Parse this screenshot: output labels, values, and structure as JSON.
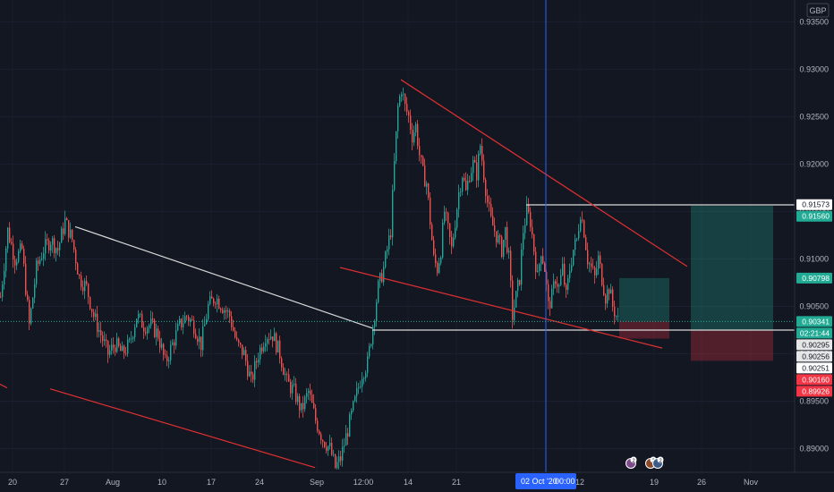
{
  "window": {
    "currency_label": "GBP"
  },
  "crosshair": {
    "date_label": "02 Oct '20",
    "time_label": "00:00"
  },
  "markers": [
    {
      "count": "2"
    },
    {
      "count": "2"
    },
    {
      "count": "2"
    }
  ],
  "chart_data": {
    "type": "candlestick",
    "symbol_currency": "GBP",
    "x_ticks": [
      "20",
      "27",
      "Aug",
      "10",
      "17",
      "24",
      "Sep",
      "12:00",
      "14",
      "21",
      "Oct",
      "12",
      "19",
      "26",
      "Nov"
    ],
    "y_ticks": [
      "0.93500",
      "0.93000",
      "0.92500",
      "0.92000",
      "0.91500",
      "0.91000",
      "0.90500",
      "0.90000",
      "0.89500",
      "0.89000"
    ],
    "ylim": [
      0.8875,
      0.9373
    ],
    "price_labels": [
      {
        "value": "0.91573",
        "bg": "#ffffff",
        "fg": "#131722"
      },
      {
        "value": "0.91560",
        "bg": "#22ab94",
        "fg": "#ffffff"
      },
      {
        "value": "0.90798",
        "bg": "#22ab94",
        "fg": "#ffffff"
      },
      {
        "value": "0.90341",
        "bg": "#22ab94",
        "fg": "#ffffff"
      },
      {
        "value": "02:21:44",
        "bg": "#22ab94",
        "fg": "#ffffff"
      },
      {
        "value": "0.90295",
        "bg": "#e6e6e6",
        "fg": "#131722"
      },
      {
        "value": "0.90256",
        "bg": "#e6e6e6",
        "fg": "#131722"
      },
      {
        "value": "0.90251",
        "bg": "#ffffff",
        "fg": "#131722"
      },
      {
        "value": "0.90160",
        "bg": "#f23645",
        "fg": "#ffffff"
      },
      {
        "value": "0.89926",
        "bg": "#f23645",
        "fg": "#ffffff"
      }
    ],
    "close_path": [
      [
        0,
        0.906
      ],
      [
        8,
        0.913
      ],
      [
        16,
        0.91
      ],
      [
        24,
        0.911
      ],
      [
        32,
        0.903
      ],
      [
        40,
        0.909
      ],
      [
        48,
        0.911
      ],
      [
        56,
        0.912
      ],
      [
        64,
        0.911
      ],
      [
        72,
        0.914
      ],
      [
        80,
        0.912
      ],
      [
        88,
        0.908
      ],
      [
        96,
        0.907
      ],
      [
        104,
        0.904
      ],
      [
        112,
        0.902
      ],
      [
        120,
        0.9
      ],
      [
        128,
        0.901
      ],
      [
        136,
        0.9
      ],
      [
        144,
        0.901
      ],
      [
        152,
        0.904
      ],
      [
        160,
        0.903
      ],
      [
        168,
        0.903
      ],
      [
        176,
        0.902
      ],
      [
        184,
        0.899
      ],
      [
        192,
        0.901
      ],
      [
        200,
        0.903
      ],
      [
        208,
        0.904
      ],
      [
        216,
        0.903
      ],
      [
        224,
        0.901
      ],
      [
        232,
        0.905
      ],
      [
        240,
        0.906
      ],
      [
        248,
        0.905
      ],
      [
        256,
        0.904
      ],
      [
        264,
        0.901
      ],
      [
        272,
        0.9
      ],
      [
        280,
        0.897
      ],
      [
        288,
        0.9
      ],
      [
        296,
        0.902
      ],
      [
        304,
        0.902
      ],
      [
        312,
        0.9
      ],
      [
        320,
        0.897
      ],
      [
        328,
        0.896
      ],
      [
        336,
        0.894
      ],
      [
        344,
        0.896
      ],
      [
        352,
        0.893
      ],
      [
        360,
        0.891
      ],
      [
        368,
        0.89
      ],
      [
        374,
        0.888
      ],
      [
        380,
        0.889
      ],
      [
        388,
        0.892
      ],
      [
        396,
        0.895
      ],
      [
        404,
        0.898
      ],
      [
        410,
        0.899
      ],
      [
        416,
        0.903
      ],
      [
        422,
        0.907
      ],
      [
        428,
        0.909
      ],
      [
        432,
        0.911
      ],
      [
        436,
        0.913
      ],
      [
        440,
        0.92
      ],
      [
        444,
        0.926
      ],
      [
        448,
        0.928
      ],
      [
        452,
        0.926
      ],
      [
        456,
        0.925
      ],
      [
        460,
        0.923
      ],
      [
        464,
        0.924
      ],
      [
        468,
        0.921
      ],
      [
        472,
        0.919
      ],
      [
        476,
        0.918
      ],
      [
        480,
        0.914
      ],
      [
        484,
        0.91
      ],
      [
        488,
        0.909
      ],
      [
        492,
        0.911
      ],
      [
        496,
        0.915
      ],
      [
        500,
        0.913
      ],
      [
        504,
        0.911
      ],
      [
        508,
        0.914
      ],
      [
        512,
        0.917
      ],
      [
        516,
        0.919
      ],
      [
        520,
        0.917
      ],
      [
        524,
        0.919
      ],
      [
        528,
        0.92
      ],
      [
        532,
        0.919
      ],
      [
        536,
        0.922
      ],
      [
        540,
        0.919
      ],
      [
        544,
        0.916
      ],
      [
        548,
        0.914
      ],
      [
        552,
        0.913
      ],
      [
        556,
        0.912
      ],
      [
        560,
        0.911
      ],
      [
        564,
        0.913
      ],
      [
        568,
        0.91
      ],
      [
        572,
        0.904
      ],
      [
        576,
        0.906
      ],
      [
        580,
        0.908
      ],
      [
        584,
        0.913
      ],
      [
        588,
        0.915
      ],
      [
        592,
        0.914
      ],
      [
        596,
        0.911
      ],
      [
        600,
        0.908
      ],
      [
        604,
        0.911
      ],
      [
        608,
        0.909
      ],
      [
        612,
        0.905
      ],
      [
        616,
        0.906
      ],
      [
        620,
        0.908
      ],
      [
        624,
        0.907
      ],
      [
        628,
        0.909
      ],
      [
        632,
        0.906
      ],
      [
        636,
        0.909
      ],
      [
        640,
        0.911
      ],
      [
        644,
        0.912
      ],
      [
        648,
        0.915
      ],
      [
        652,
        0.913
      ],
      [
        656,
        0.91
      ],
      [
        660,
        0.909
      ],
      [
        664,
        0.908
      ],
      [
        668,
        0.91
      ],
      [
        672,
        0.908
      ],
      [
        676,
        0.906
      ],
      [
        680,
        0.907
      ],
      [
        684,
        0.905
      ],
      [
        688,
        0.904
      ],
      [
        692,
        0.903
      ]
    ],
    "trend_lines": [
      {
        "name": "jul-falling-resistance",
        "color": "#d9d9d9",
        "from": [
          84,
          0.9134
        ],
        "to": [
          416,
          0.9027
        ]
      },
      {
        "name": "sep-breakout-level",
        "color": "#d9d9d9",
        "from": [
          416,
          0.9025
        ],
        "to": [
          888,
          0.9025
        ]
      },
      {
        "name": "sep-high-level",
        "color": "#d9d9d9",
        "from": [
          588,
          0.9157
        ],
        "to": [
          888,
          0.9157
        ]
      },
      {
        "name": "descending-channel-top",
        "color": "#e03030",
        "from": [
          448,
          0.9289
        ],
        "to": [
          768,
          0.9092
        ]
      },
      {
        "name": "descending-channel-bottom",
        "color": "#e03030",
        "from": [
          380,
          0.9091
        ],
        "to": [
          740,
          0.9006
        ]
      },
      {
        "name": "lower-channel-left",
        "color": "#e03030",
        "from": [
          56,
          0.8963
        ],
        "to": [
          352,
          0.888
        ]
      },
      {
        "name": "left-stub",
        "color": "#e03030",
        "from": [
          0,
          0.8968
        ],
        "to": [
          8,
          0.8964
        ]
      }
    ],
    "positions": [
      {
        "name": "long-small",
        "x1": 692,
        "x2": 748,
        "entry": 0.90341,
        "target": 0.90798,
        "stop": 0.9016
      },
      {
        "name": "long-large",
        "x1": 772,
        "x2": 864,
        "entry": 0.90251,
        "target": 0.9156,
        "stop": 0.89926
      }
    ],
    "crosshair_x": 610
  }
}
